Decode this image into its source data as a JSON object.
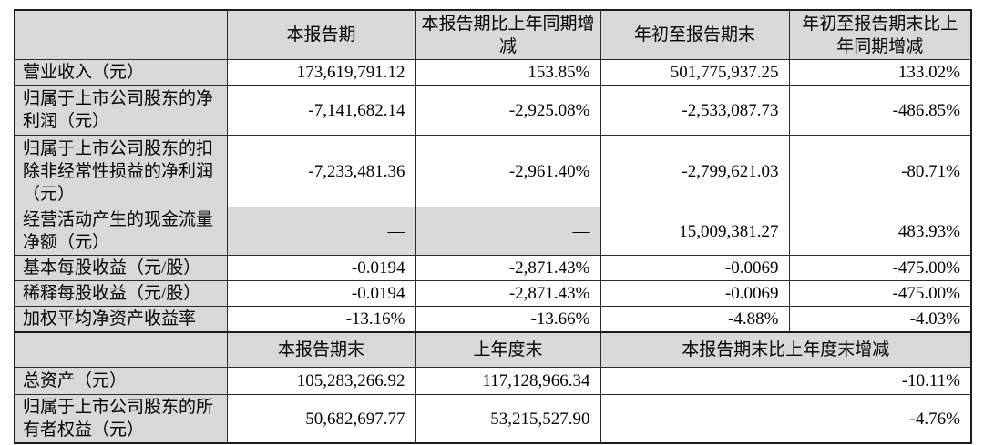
{
  "table": {
    "header_period": {
      "corner": "",
      "col_current": "本报告期",
      "col_current_yoy": "本报告期比上年同期增减",
      "col_ytd": "年初至报告期末",
      "col_ytd_yoy": "年初至报告期末比上年同期增减"
    },
    "period_rows": [
      {
        "label": "营业收入（元）",
        "values": [
          "173,619,791.12",
          "153.85%",
          "501,775,937.25",
          "133.02%"
        ]
      },
      {
        "label": "归属于上市公司股东的净利润（元）",
        "values": [
          "-7,141,682.14",
          "-2,925.08%",
          "-2,533,087.73",
          "-486.85%"
        ]
      },
      {
        "label": "归属于上市公司股东的扣除非经常性损益的净利润（元）",
        "values": [
          "-7,233,481.36",
          "-2,961.40%",
          "-2,799,621.03",
          "-80.71%"
        ]
      },
      {
        "label": "经营活动产生的现金流量净额（元）",
        "values": [
          "—",
          "—",
          "15,009,381.27",
          "483.93%"
        ]
      },
      {
        "label": "基本每股收益（元/股）",
        "values": [
          "-0.0194",
          "-2,871.43%",
          "-0.0069",
          "-475.00%"
        ]
      },
      {
        "label": "稀释每股收益（元/股）",
        "values": [
          "-0.0194",
          "-2,871.43%",
          "-0.0069",
          "-475.00%"
        ]
      },
      {
        "label": "加权平均净资产收益率",
        "values": [
          "-13.16%",
          "-13.66%",
          "-4.88%",
          "-4.03%"
        ]
      }
    ],
    "header_balance": {
      "corner": "",
      "col_period_end": "本报告期末",
      "col_prev_year_end": "上年度末",
      "col_change": "本报告期末比上年度末增减"
    },
    "balance_rows": [
      {
        "label": "总资产（元）",
        "values": [
          "105,283,266.92",
          "117,128,966.34",
          "-10.11%"
        ]
      },
      {
        "label": "归属于上市公司股东的所有者权益（元）",
        "values": [
          "50,682,697.77",
          "53,215,527.90",
          "-4.76%"
        ]
      }
    ],
    "colors": {
      "header_fill": "#d8d8d8",
      "row_label_fill": "#d8d8d8",
      "border": "#2b2b2b",
      "background": "#ffffff"
    }
  }
}
